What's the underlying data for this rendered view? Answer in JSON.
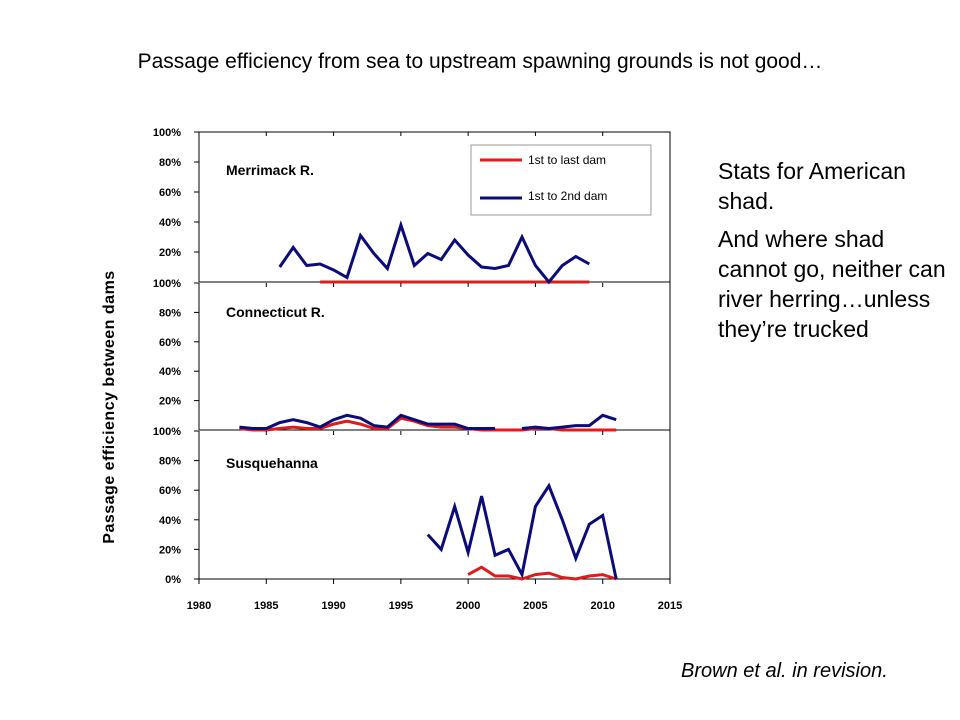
{
  "title": "Passage efficiency from sea to upstream spawning grounds is not good…",
  "side_text": [
    "Stats for American shad.",
    "And where shad cannot go, neither can river herring…unless they’re trucked"
  ],
  "citation": "Brown et al. in revision.",
  "colors": {
    "last": "#e01b1b",
    "second": "#0b0b7a",
    "axis": "#000000"
  },
  "chart_data": {
    "type": "line",
    "ylabel": "Passage efficiency between dams",
    "xlabel": "",
    "xlim": [
      1980,
      2015
    ],
    "x_ticks": [
      "1980",
      "1985",
      "1990",
      "1995",
      "2000",
      "2005",
      "2010",
      "2015"
    ],
    "y_ticks": [
      "0%",
      "20%",
      "40%",
      "60%",
      "80%",
      "100%"
    ],
    "ylim": [
      0,
      100
    ],
    "legend": {
      "location": "top-right of top panel",
      "entries": [
        "1st to last dam",
        "1st to 2nd dam"
      ]
    },
    "panels": [
      {
        "name": "Merrimack R.",
        "series": [
          {
            "name": "1st to last dam",
            "key": "last",
            "x": [
              1989,
              1990,
              1991,
              1992,
              1993,
              1994,
              1995,
              1996,
              1997,
              1998,
              1999,
              2000,
              2001,
              2002,
              2003,
              2004,
              2005,
              2006,
              2007,
              2008,
              2009
            ],
            "y": [
              0,
              0,
              0,
              0,
              0,
              0,
              0,
              0,
              0,
              0,
              0,
              0,
              0,
              0,
              0,
              0,
              0,
              0,
              0,
              0,
              0
            ]
          },
          {
            "name": "1st to 2nd dam",
            "key": "second",
            "x": [
              1986,
              1987,
              1988,
              1989,
              1990,
              1991,
              1992,
              1993,
              1994,
              1995,
              1996,
              1997,
              1998,
              1999,
              2000,
              2001,
              2002,
              2003,
              2004,
              2005,
              2006,
              2007,
              2008,
              2009
            ],
            "y": [
              10,
              23,
              11,
              12,
              8,
              3,
              31,
              19,
              9,
              38,
              11,
              19,
              15,
              28,
              18,
              10,
              9,
              11,
              30,
              11,
              0,
              11,
              17,
              12
            ]
          }
        ]
      },
      {
        "name": "Connecticut R.",
        "series": [
          {
            "name": "1st to last dam",
            "key": "last",
            "x": [
              1983,
              1984,
              1985,
              1986,
              1987,
              1988,
              1989,
              1990,
              1991,
              1992,
              1993,
              1994,
              1995,
              1996,
              1997,
              1998,
              1999,
              2000,
              2001,
              2002,
              2003,
              2004,
              2005,
              2006,
              2007,
              2008,
              2009,
              2010,
              2011
            ],
            "y": [
              1,
              0,
              0,
              1,
              2,
              1,
              1,
              4,
              6,
              4,
              1,
              1,
              8,
              6,
              3,
              2,
              2,
              1,
              0,
              0,
              0,
              0,
              1,
              1,
              0,
              0,
              0,
              0,
              0
            ]
          },
          {
            "name": "1st to 2nd dam",
            "key": "second",
            "x": [
              1983,
              1984,
              1985,
              1986,
              1987,
              1988,
              1989,
              1990,
              1991,
              1992,
              1993,
              1994,
              1995,
              1996,
              1997,
              1998,
              1999,
              2000,
              2001,
              2002,
              2003,
              2004,
              2005,
              2006,
              2007,
              2008,
              2009,
              2010,
              2011
            ],
            "y": [
              2,
              1,
              1,
              5,
              7,
              5,
              2,
              7,
              10,
              8,
              3,
              2,
              10,
              7,
              4,
              4,
              4,
              1,
              1,
              1,
              null,
              1,
              2,
              1,
              2,
              3,
              3,
              10,
              7
            ]
          }
        ]
      },
      {
        "name": "Susquehanna",
        "series": [
          {
            "name": "1st to last dam",
            "key": "last",
            "x": [
              2000,
              2001,
              2002,
              2003,
              2004,
              2005,
              2006,
              2007,
              2008,
              2009,
              2010,
              2011
            ],
            "y": [
              3,
              8,
              2,
              2,
              0,
              3,
              4,
              1,
              0,
              2,
              3,
              0
            ]
          },
          {
            "name": "1st to 2nd dam",
            "key": "second",
            "x": [
              1997,
              1998,
              1999,
              2000,
              2001,
              2002,
              2003,
              2004,
              2005,
              2006,
              2007,
              2008,
              2009,
              2010,
              2011
            ],
            "y": [
              30,
              20,
              49,
              18,
              56,
              16,
              20,
              3,
              49,
              63,
              40,
              14,
              37,
              43,
              0
            ]
          }
        ]
      }
    ]
  }
}
